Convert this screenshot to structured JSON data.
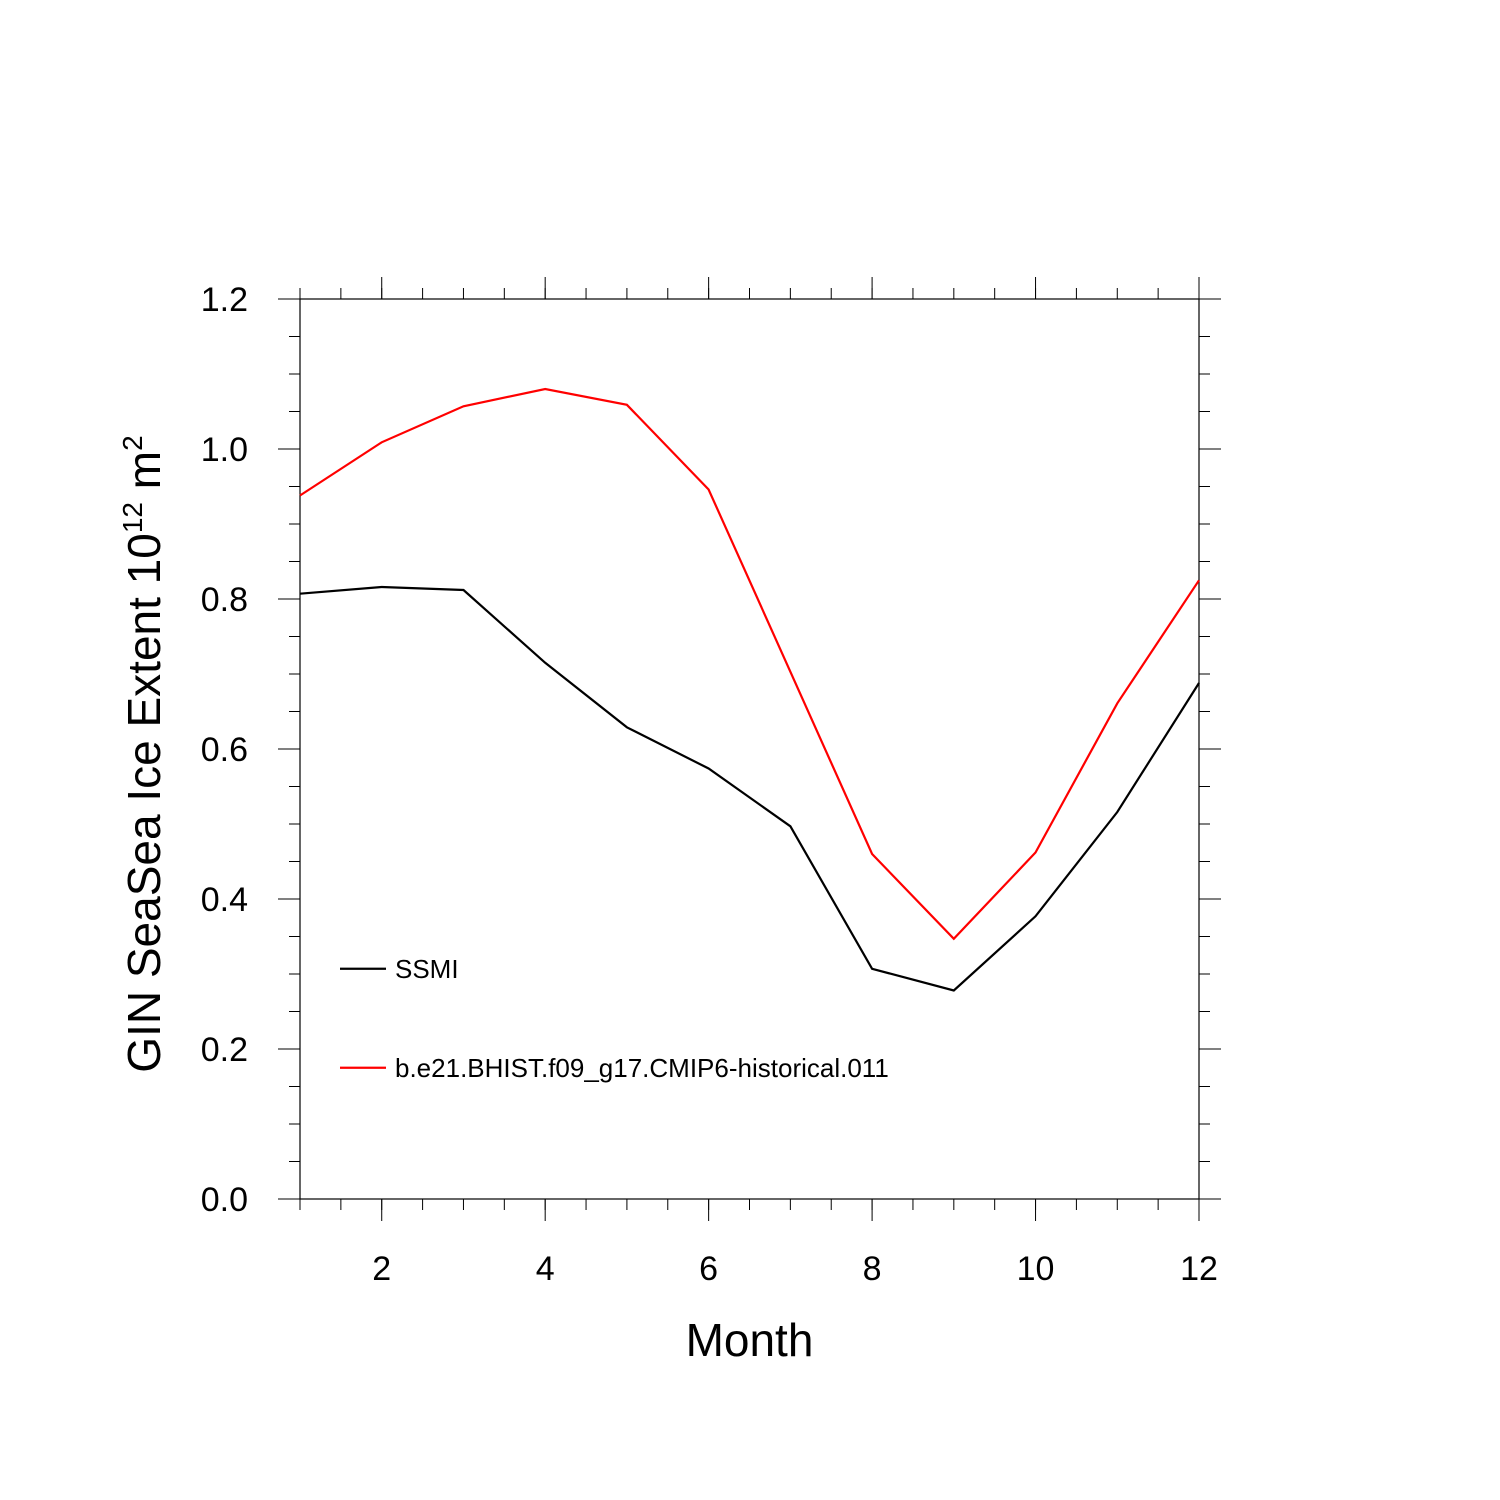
{
  "chart_data": {
    "type": "line",
    "xlabel": "Month",
    "ylabel": {
      "main": "GIN SeaSea Ice Extent 10",
      "sup1": "12",
      "unit": " m",
      "sup2": "2"
    },
    "xlim": [
      1,
      12
    ],
    "ylim": [
      0.0,
      1.2
    ],
    "x_ticks": [
      2,
      4,
      6,
      8,
      10,
      12
    ],
    "y_ticks": [
      "0.0",
      "0.2",
      "0.4",
      "0.6",
      "0.8",
      "1.0",
      "1.2"
    ],
    "x": [
      1,
      2,
      3,
      4,
      5,
      6,
      7,
      8,
      9,
      10,
      11,
      12
    ],
    "series": [
      {
        "name": "SSMI",
        "color": "#000000",
        "values": [
          0.807,
          0.816,
          0.812,
          0.715,
          0.629,
          0.574,
          0.497,
          0.307,
          0.278,
          0.377,
          0.516,
          0.688
        ]
      },
      {
        "name": "b.e21.BHIST.f09_g17.CMIP6-historical.011",
        "color": "#ff0000",
        "values": [
          0.938,
          1.009,
          1.057,
          1.08,
          1.059,
          0.946,
          0.703,
          0.46,
          0.347,
          0.462,
          0.661,
          0.825
        ]
      }
    ],
    "legend_position": "lower-left",
    "grid": false
  }
}
